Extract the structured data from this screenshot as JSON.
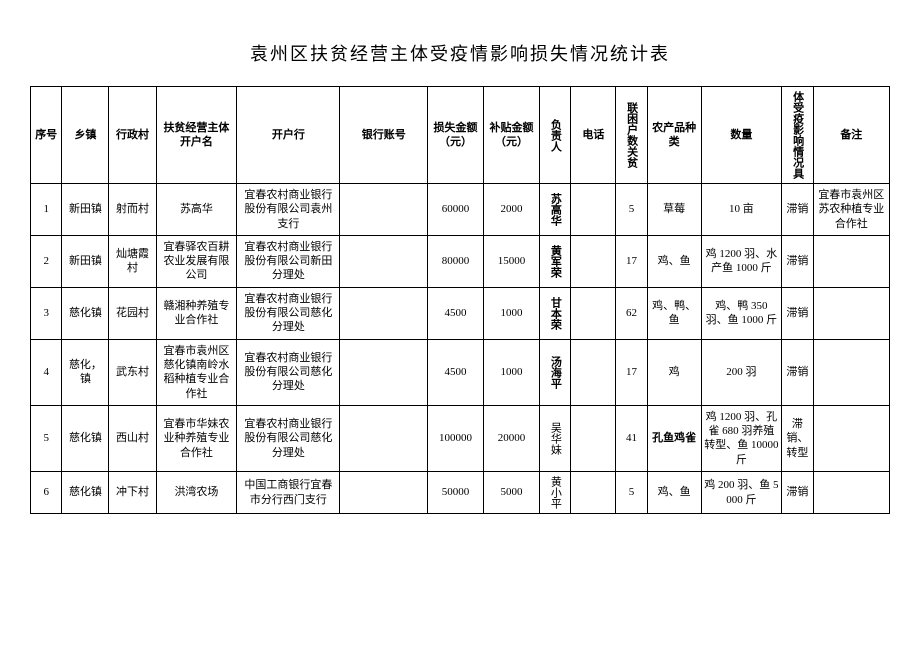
{
  "title": "袁州区扶贫经营主体受疫情影响损失情况统计表",
  "columns": [
    "序号",
    "乡镇",
    "行政村",
    "扶贫经营主体开户名",
    "开户行",
    "银行账号",
    "损失金额（元）",
    "补贴金额（元）",
    "负责人",
    "电话",
    "联困户数关贫",
    "农产品种类",
    "数量",
    "体受疫影响情况具",
    "备注"
  ],
  "rows": [
    {
      "seq": "1",
      "town": "新田镇",
      "village": "射而村",
      "entity": "苏高华",
      "bank": "宜春农村商业银行股份有限公司袁州支行",
      "account": "",
      "loss": "60000",
      "subsidy": "2000",
      "person": "苏高华",
      "person_bold": true,
      "phone": "",
      "poor": "5",
      "product": "草莓",
      "qty": "10 亩",
      "effect": "滞销",
      "note": "宜春市袁州区苏农种植专业合作社"
    },
    {
      "seq": "2",
      "town": "新田镇",
      "village": "灿塘霞村",
      "entity": "宜春驿农百耕农业发展有限公司",
      "bank": "宜春农村商业银行股份有限公司新田分理处",
      "account": "",
      "loss": "80000",
      "subsidy": "15000",
      "person": "黄军荣",
      "person_bold": true,
      "phone": "",
      "poor": "17",
      "product": "鸡、鱼",
      "qty": "鸡 1200 羽、水产鱼 1000 斤",
      "effect": "滞销",
      "note": ""
    },
    {
      "seq": "3",
      "town": "慈化镇",
      "village": "花园村",
      "entity": "赣湘种养殖专业合作社",
      "bank": "宜春农村商业银行股份有限公司慈化分理处",
      "account": "",
      "loss": "4500",
      "subsidy": "1000",
      "person": "甘本荣",
      "person_bold": true,
      "phone": "",
      "poor": "62",
      "product": "鸡、鸭、鱼",
      "qty": "鸡、鸭 350 羽、鱼 1000 斤",
      "effect": "滞销",
      "note": ""
    },
    {
      "seq": "4",
      "town": "慈化，镇",
      "village": "武东村",
      "entity": "宜春市袁州区慈化镇南岭水稻种植专业合作社",
      "bank": "宜春农村商业银行股份有限公司慈化分理处",
      "account": "",
      "loss": "4500",
      "subsidy": "1000",
      "person": "汤海平",
      "person_bold": true,
      "phone": "",
      "poor": "17",
      "product": "鸡",
      "qty": "200 羽",
      "effect": "滞销",
      "note": ""
    },
    {
      "seq": "5",
      "town": "慈化镇",
      "village": "西山村",
      "entity": "宜春市华妹农业种养殖专业合作社",
      "bank": "宜春农村商业银行股份有限公司慈化分理处",
      "account": "",
      "loss": "100000",
      "subsidy": "20000",
      "person": "吴华妹",
      "person_bold": false,
      "phone": "",
      "poor": "41",
      "product": "孔鱼鸡雀",
      "product_bold": true,
      "qty": "鸡 1200 羽、孔雀 680 羽养殖转型、鱼 10000 斤",
      "effect": "滞销、转型",
      "note": ""
    },
    {
      "seq": "6",
      "town": "慈化镇",
      "village": "冲下村",
      "entity": "洪湾农场",
      "bank": "中国工商银行宜春市分行西门支行",
      "account": "",
      "loss": "50000",
      "subsidy": "5000",
      "person": "黄小平",
      "person_bold": false,
      "phone": "",
      "poor": "5",
      "product": "鸡、鱼",
      "qty": "鸡 200 羽、鱼 5000 斤",
      "effect": "滞销",
      "note": ""
    }
  ]
}
